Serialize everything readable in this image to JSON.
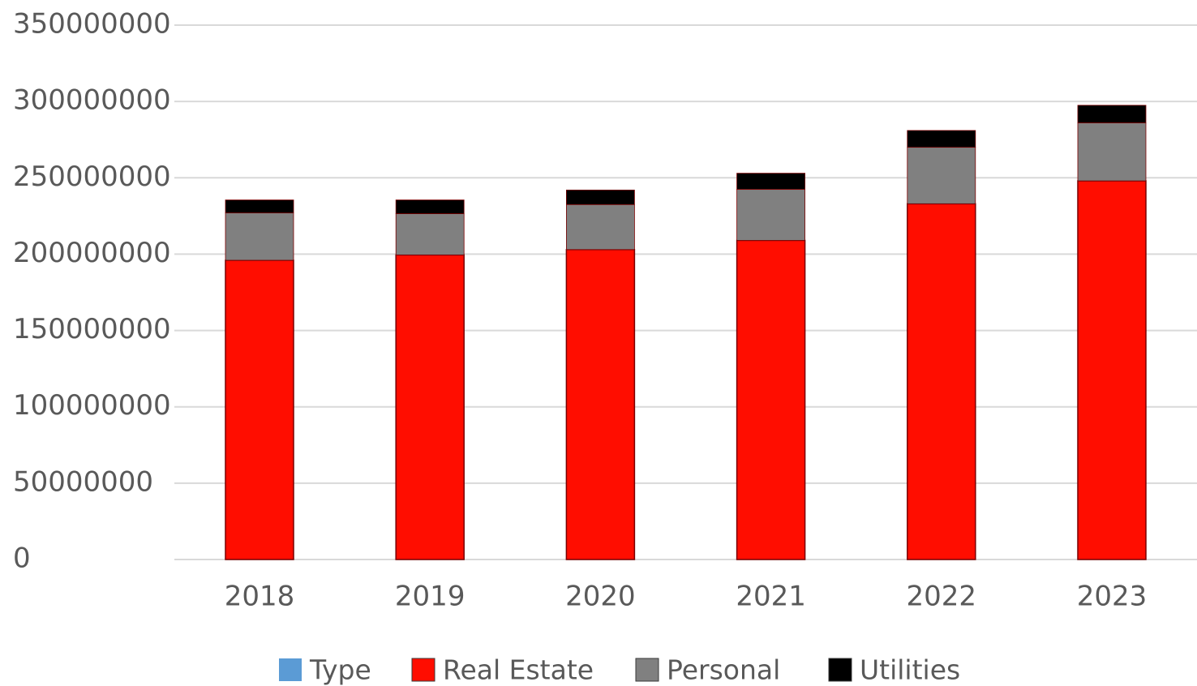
{
  "chart_data": {
    "type": "bar",
    "stacked": true,
    "categories": [
      "2018",
      "2019",
      "2020",
      "2021",
      "2022",
      "2023"
    ],
    "series": [
      {
        "name": "Type",
        "values": [
          0,
          0,
          0,
          0,
          0,
          0
        ]
      },
      {
        "name": "Real Estate",
        "values": [
          196000000,
          199500000,
          203000000,
          209000000,
          233000000,
          248000000
        ]
      },
      {
        "name": "Personal",
        "values": [
          31000000,
          27000000,
          29500000,
          33500000,
          37000000,
          38000000
        ]
      },
      {
        "name": "Utilities",
        "values": [
          8500000,
          9000000,
          9500000,
          10500000,
          11000000,
          11500000
        ]
      }
    ],
    "colors": [
      "#5b9bd5",
      "#ff0d00",
      "#808080",
      "#000000"
    ],
    "y_ticks": [
      "0",
      "50000000",
      "100000000",
      "150000000",
      "200000000",
      "250000000",
      "300000000",
      "350000000"
    ],
    "ylim": [
      0,
      350000000
    ],
    "title": "",
    "xlabel": "",
    "ylabel": "",
    "grid": true,
    "legend_position": "bottom"
  }
}
